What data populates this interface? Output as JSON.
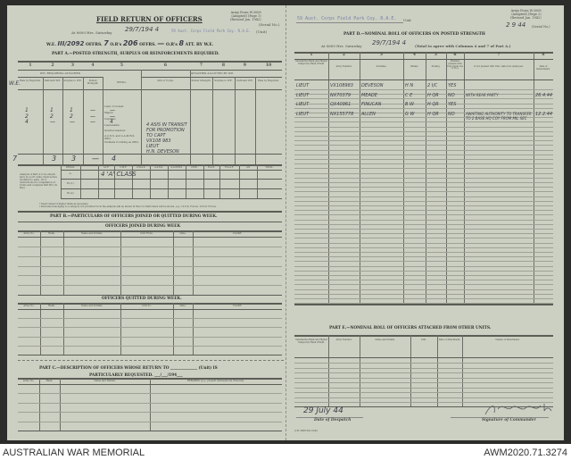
{
  "left": {
    "form_ref": [
      "Army Form W.3008",
      "(Adapted) (Page 1)",
      "(Revised Jan. 1942)"
    ],
    "serial_label": "(Serial No.)",
    "title": "FIELD RETURN OF OFFICERS",
    "at_label": "At 0600 Hrs. Saturday",
    "date_hw": "29/7/194 4",
    "unit_stamp": "59 Aust. Corps Field Park Coy. R.A.E.",
    "unit_label": "(Unit)",
    "we_line": {
      "we_label": "W.E.",
      "we_value": "III/2092",
      "offrs_label": "OFFRS.",
      "offrs_value": "7",
      "ors_label": "O.R's",
      "ors_value": "206",
      "offrs2_label": "OFFRS.",
      "offrs2_value": "—",
      "ors2_label": "O.R's",
      "ors2_value": "8",
      "att_label": "ATT. BY W.E."
    },
    "part_a": "PART A.—POSTED STRENGTH, SURPLUS OR REINFORCEMENTS REQUIRED.",
    "col_numbers": [
      "1",
      "2",
      "3",
      "4",
      "5",
      "6",
      "7",
      "8",
      "9",
      "10"
    ],
    "group_left": "W.E. REQUIRING ATTACHED",
    "group_right": "ATTACHED ALLOTTED BY W.E.",
    "col_heads": [
      "Rate by Required.",
      "Deficient W.E.",
      "Surplus to W.E.",
      "Posted Strength.",
      "DETAIL.",
      "Arm or Corps.",
      "Posted Strength.",
      "Surplus to W.E.",
      "Deficient W.E.",
      "Rate by Required."
    ],
    "row_label_hw": "W.E.",
    "ranks": [
      "Lieut.-Colonels",
      "Majors",
      "Captains",
      "Lieutenants",
      "Quarter-masters",
      "A.A.N.S. and A.A.M.W.S. Offrs.",
      "Civilians Counting as Offrs."
    ],
    "rank_values": [
      [
        "",
        "",
        "",
        "",
        ""
      ],
      [
        "1",
        "1",
        "1",
        "—",
        "—"
      ],
      [
        "2",
        "2",
        "2",
        "—",
        "—"
      ],
      [
        "4",
        "—",
        "—",
        "—",
        "4"
      ]
    ],
    "note_hw": [
      "4 ASIS IN TRANSIT",
      "FOR PROMOTION",
      "TO CAPT",
      "VX108 983",
      "LIEUT",
      "H.N. DEVESON"
    ],
    "totals_hw": [
      "7",
      "3",
      "3",
      "—",
      "4"
    ],
    "analysis_note": "Analysis of Part A to be shown here by A.I.F. units, their action modified to para. 16 of instructions for compilation of forms and complete Part B(1) & B(2).",
    "analysis_heads": [
      "DETAIL.",
      "",
      "A.I.F.",
      "C.M.F.",
      "A.W.A.S.",
      "A.A.N.S.",
      "A.A.M.W.S.",
      "CIVIL.",
      "R.A.N.",
      "R.A.A.F.",
      "2/4",
      "TOTAL."
    ],
    "analysis_rows": [
      "A.",
      "B.(1)",
      "B.(2)"
    ],
    "analysis_hw": "4   'A' CLASS",
    "footnotes": [
      "* Insert detail of higher ranks as necessary.",
      "† Personnel belonging to a category not provided for in the analysis will be shown in this Col. Particulars will be shown, e.g., 10 U.K. Forces; 10 N.Z. Forces."
    ],
    "part_b": "PART B.—PARTICULARS OF OFFICERS JOINED OR QUITTED DURING WEEK.",
    "joined_title": "OFFICERS JOINED DURING WEEK",
    "joined_heads": [
      "Army No.",
      "Rank.",
      "Name and Initials.",
      "Unit From.",
      "Date.",
      "CAUSE."
    ],
    "quitted_title": "OFFICERS QUITTED DURING WEEK.",
    "quitted_heads": [
      "Army No.",
      "Rank.",
      "Name and Initials.",
      "Unit To.",
      "Date.",
      "CAUSE."
    ],
    "part_c": "PART C.—DESCRIPTION OF OFFICERS WHOSE RETURN TO ______________ (Unit) IS",
    "part_c2": "PARTICULARLY REQUESTED.  ___/___/194___",
    "part_c_heads": [
      "Army No.",
      "Rank.",
      "Name and Initials.",
      "REMARKS (e.g., present whereabouts if known)."
    ]
  },
  "right": {
    "unit_stamp": "59 Aust. Corps Field Park Coy. R.A.E.",
    "unit_label": "Unit",
    "form_ref": [
      "Army Form W.3008",
      "(Adapted) (Page 2)",
      "(Revised Jan. 1942)"
    ],
    "serial_hw": "2 9 44",
    "serial_label": "(Serial No.)",
    "part_d": "PART D.—NOMINAL ROLL OF OFFICERS ON POSTED STRENGTH",
    "at_label": "At 0600 Hrs. Saturday",
    "date_hw": "29/7/194 4",
    "at_suffix": "(Total to agree with Columns 4 and 7 of Part A.)",
    "col_numbers": [
      "1",
      "2",
      "3",
      "4",
      "5",
      "6",
      "7",
      "8"
    ],
    "col_heads": [
      "Substantive Rank and Higher Temporary Rank if Held.",
      "Army Number.",
      "Surname.",
      "Initials.",
      "Posting.",
      "Whether present with Unit (state Yes or No).",
      "If not present with Unit, state how employed.",
      "Date of Detachment."
    ],
    "rows": [
      [
        "LIEUT",
        "VX108983",
        "DEVESON",
        "H N",
        "2 I/C",
        "YES",
        "",
        ""
      ],
      [
        "LIEUT",
        "NX70379",
        "MEADE",
        "C E",
        "H QR",
        "NO",
        "WITH REAR PARTY",
        "26.4.44"
      ],
      [
        "LIEUT",
        "QX40961",
        "FINUCAN",
        "B W",
        "H QR",
        "YES",
        "",
        ""
      ],
      [
        "LIEUT",
        "NX155778",
        "ALLEN",
        "G W",
        "H QR",
        "NO",
        "AWAITING AUTHORITY TO TRANSFER TO 2 BASE HQ COY FROM MIL SEC",
        "12.2.44"
      ]
    ],
    "part_e": "PART E.—NOMINAL ROLL OF OFFICERS ATTACHED FROM OTHER UNITS.",
    "part_e_heads": [
      "Substantive Rank and Higher Temporary Rank if Held.",
      "Army Number.",
      "Name and Initials.",
      "Unit.",
      "Date of Attachment.",
      "Nature of Attachment."
    ],
    "despatch_hw": "29 July 44",
    "despatch_label": "Date of Despatch",
    "signature_label": "Signature of Commander",
    "print_ref": "A.W. 3008 Pds 10/42"
  },
  "footer": {
    "left": "AUSTRALIAN WAR MEMORIAL",
    "right": "AWM2020.71.3274"
  }
}
